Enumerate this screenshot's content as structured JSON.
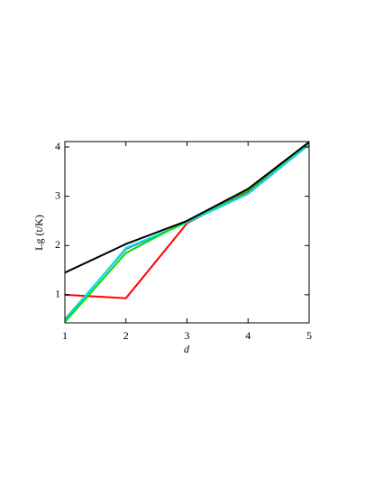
{
  "chart_data": {
    "type": "line",
    "x_label": "d",
    "y_label": "Lg (t/K)",
    "x": [
      1,
      2,
      3,
      4,
      5
    ],
    "xlim": [
      1,
      5
    ],
    "xticks": [
      1,
      2,
      3,
      4,
      5
    ],
    "ylim": [
      0.43,
      4.11
    ],
    "yticks": [
      1,
      2,
      3,
      4
    ],
    "series": [
      {
        "name": "red",
        "color": "#ff0000",
        "values": [
          1.0,
          0.93,
          2.45,
          3.1,
          4.05
        ]
      },
      {
        "name": "blue",
        "color": "#4a6ab0",
        "values": [
          0.5,
          1.93,
          2.47,
          3.05,
          4.05
        ]
      },
      {
        "name": "cyan",
        "color": "#00e5ee",
        "values": [
          0.48,
          1.95,
          2.47,
          3.06,
          4.06
        ]
      },
      {
        "name": "green",
        "color": "#00dd00",
        "values": [
          0.45,
          1.85,
          2.5,
          3.12,
          4.1
        ]
      },
      {
        "name": "black",
        "color": "#000000",
        "values": [
          1.45,
          2.03,
          2.5,
          3.15,
          4.1
        ]
      }
    ]
  }
}
